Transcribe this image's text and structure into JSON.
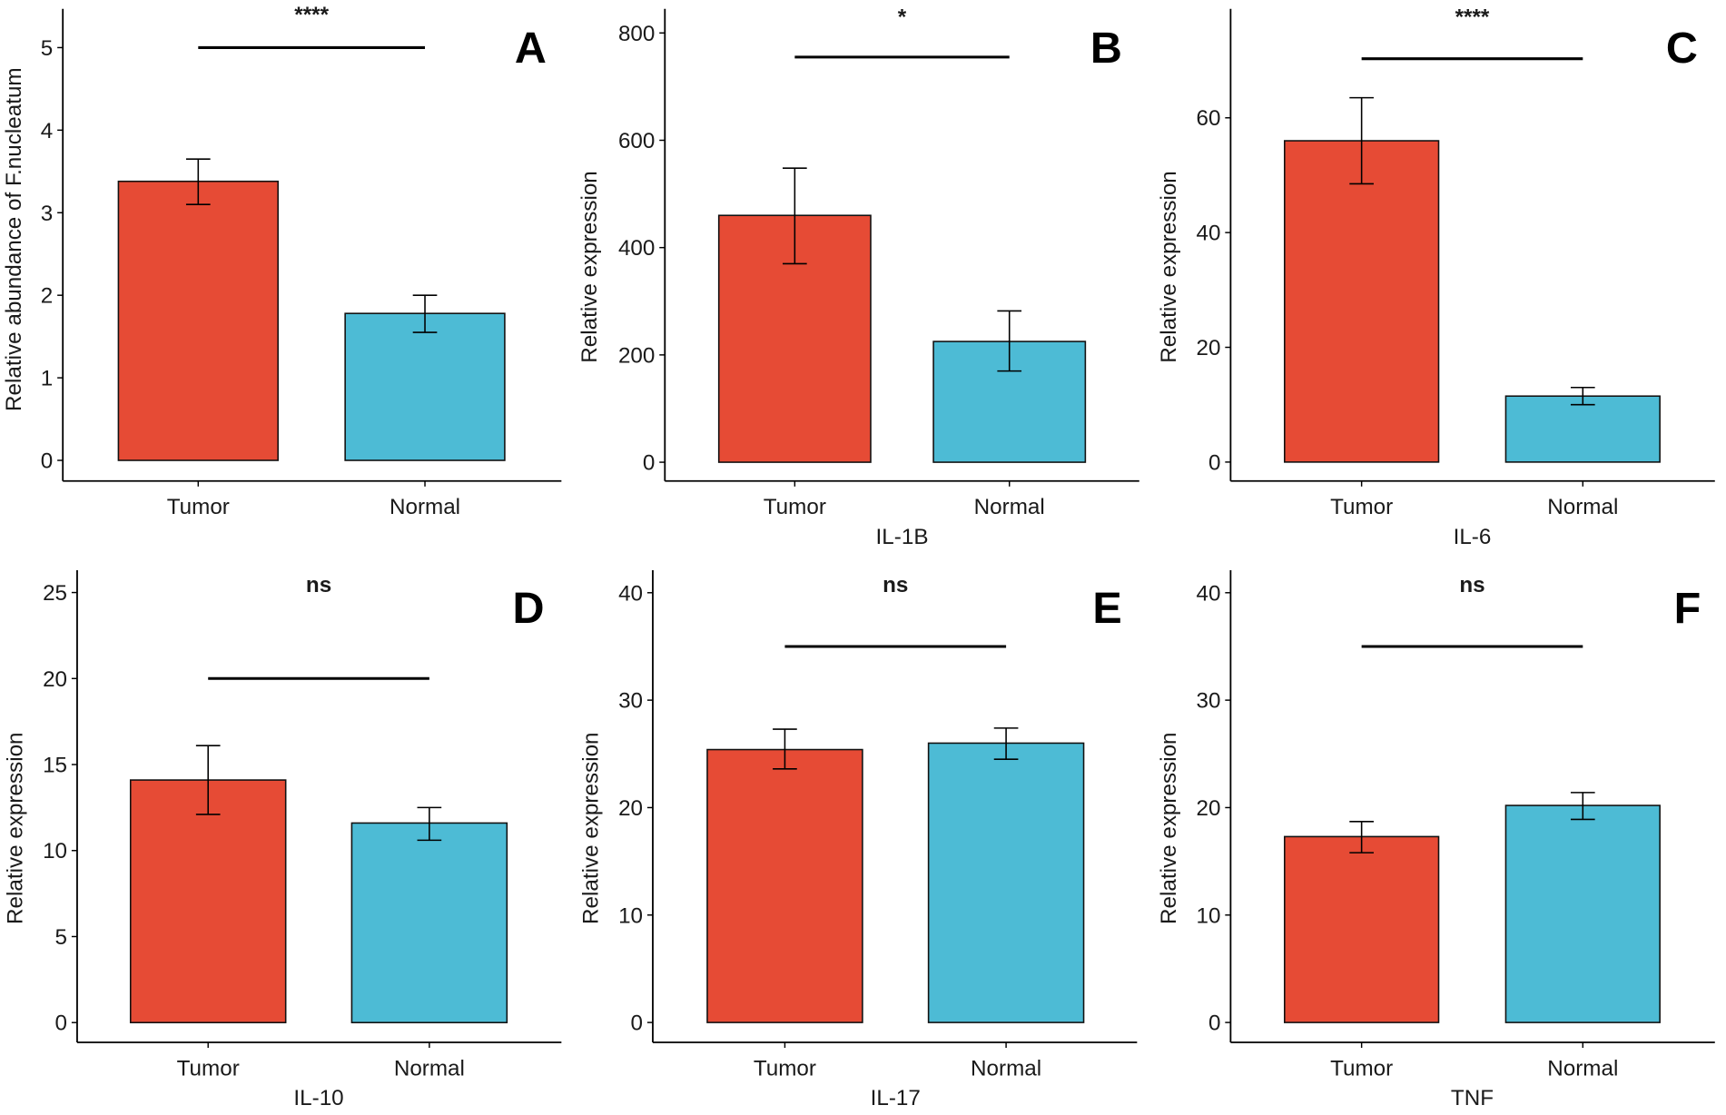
{
  "chart_data": [
    {
      "panel": "A",
      "type": "bar",
      "title": "",
      "xlabel": "",
      "ylabel": "Relative abundance of F.nucleatum",
      "categories": [
        "Tumor",
        "Normal"
      ],
      "values": [
        3.38,
        1.78
      ],
      "error_low": [
        3.1,
        1.55
      ],
      "error_high": [
        3.65,
        2.0
      ],
      "colors": [
        "#E64B35",
        "#4DBBD5"
      ],
      "ylim": [
        -0.25,
        5.47
      ],
      "yticks": [
        0,
        1,
        2,
        3,
        4,
        5
      ],
      "significance": {
        "label": "****",
        "y": 5.0
      },
      "grid": false
    },
    {
      "panel": "B",
      "type": "bar",
      "title": "",
      "xlabel": "IL-1B",
      "ylabel": "Relative expression",
      "categories": [
        "Tumor",
        "Normal"
      ],
      "values": [
        460,
        225
      ],
      "error_low": [
        370,
        170
      ],
      "error_high": [
        548,
        282
      ],
      "colors": [
        "#E64B35",
        "#4DBBD5"
      ],
      "ylim": [
        -35,
        845
      ],
      "yticks": [
        0,
        200,
        400,
        600,
        800
      ],
      "significance": {
        "label": "*",
        "y": 755
      },
      "grid": false
    },
    {
      "panel": "C",
      "type": "bar",
      "title": "",
      "xlabel": "IL-6",
      "ylabel": "Relative expression",
      "categories": [
        "Tumor",
        "Normal"
      ],
      "values": [
        56,
        11.5
      ],
      "error_low": [
        48.5,
        10
      ],
      "error_high": [
        63.5,
        13
      ],
      "colors": [
        "#E64B35",
        "#4DBBD5"
      ],
      "ylim": [
        -3.3,
        79
      ],
      "yticks": [
        0,
        20,
        40,
        60
      ],
      "significance": {
        "label": "****",
        "y": 70.3
      },
      "grid": false
    },
    {
      "panel": "D",
      "type": "bar",
      "title": "",
      "xlabel": "IL-10",
      "ylabel": "Relative expression",
      "categories": [
        "Tumor",
        "Normal"
      ],
      "values": [
        14.1,
        11.6
      ],
      "error_low": [
        12.1,
        10.6
      ],
      "error_high": [
        16.1,
        12.5
      ],
      "colors": [
        "#E64B35",
        "#4DBBD5"
      ],
      "ylim": [
        -1.15,
        26.3
      ],
      "yticks": [
        0,
        5,
        10,
        15,
        20,
        25
      ],
      "significance": {
        "label": "ns",
        "y": 20
      },
      "grid": false
    },
    {
      "panel": "E",
      "type": "bar",
      "title": "",
      "xlabel": "IL-17",
      "ylabel": "Relative expression",
      "categories": [
        "Tumor",
        "Normal"
      ],
      "values": [
        25.4,
        26.0
      ],
      "error_low": [
        23.6,
        24.5
      ],
      "error_high": [
        27.3,
        27.4
      ],
      "colors": [
        "#E64B35",
        "#4DBBD5"
      ],
      "ylim": [
        -1.85,
        42.1
      ],
      "yticks": [
        0,
        10,
        20,
        30,
        40
      ],
      "significance": {
        "label": "ns",
        "y": 35
      },
      "grid": false
    },
    {
      "panel": "F",
      "type": "bar",
      "title": "",
      "xlabel": "TNF",
      "ylabel": "Relative expression",
      "categories": [
        "Tumor",
        "Normal"
      ],
      "values": [
        17.3,
        20.2
      ],
      "error_low": [
        15.8,
        18.9
      ],
      "error_high": [
        18.7,
        21.4
      ],
      "colors": [
        "#E64B35",
        "#4DBBD5"
      ],
      "ylim": [
        -1.85,
        42.1
      ],
      "yticks": [
        0,
        10,
        20,
        30,
        40
      ],
      "significance": {
        "label": "ns",
        "y": 35
      },
      "grid": false
    }
  ]
}
